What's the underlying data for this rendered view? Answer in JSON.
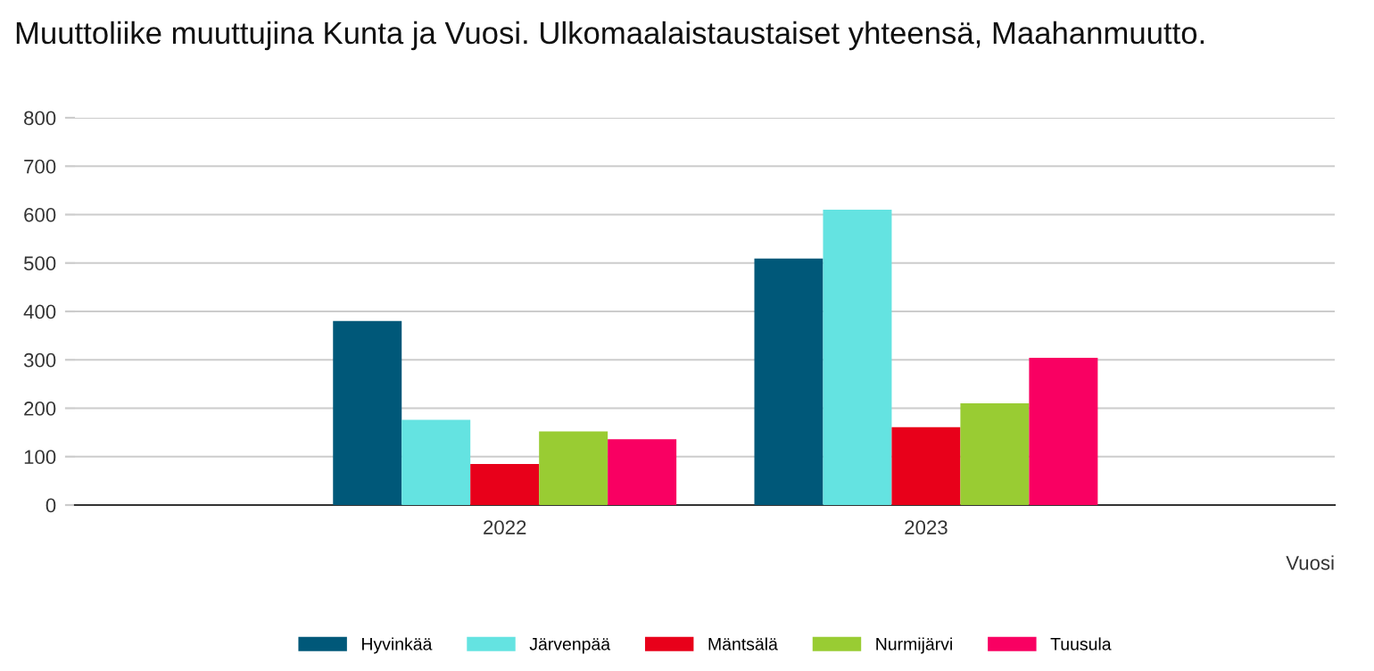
{
  "chart_data": {
    "type": "bar",
    "title": "Muuttoliike muuttujina Kunta ja Vuosi. Ulkomaalaistaustaiset yhteensä, Maahanmuutto.",
    "xlabel": "Vuosi",
    "categories": [
      "2022",
      "2023"
    ],
    "series": [
      {
        "name": "Hyvinkää",
        "color": "#005879",
        "values": [
          380,
          509
        ]
      },
      {
        "name": "Järvenpää",
        "color": "#64e3e1",
        "values": [
          176,
          610
        ]
      },
      {
        "name": "Mäntsälä",
        "color": "#e8001a",
        "values": [
          85,
          161
        ]
      },
      {
        "name": "Nurmijärvi",
        "color": "#99cc33",
        "values": [
          152,
          210
        ]
      },
      {
        "name": "Tuusula",
        "color": "#f90062",
        "values": [
          136,
          304
        ]
      }
    ],
    "ylim": [
      0,
      800
    ],
    "yticks": [
      0,
      100,
      200,
      300,
      400,
      500,
      600,
      700,
      800
    ],
    "grid": "y",
    "legend": "bottom"
  }
}
